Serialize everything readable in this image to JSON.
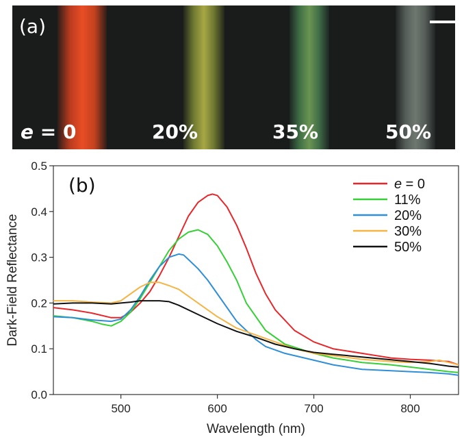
{
  "photo": {
    "panel_label": "(a)",
    "strain_var": "e",
    "strain_first_suffix": " = 0",
    "strain_labels": [
      "20%",
      "35%",
      "50%"
    ]
  },
  "chart_data": {
    "type": "line",
    "panel_label": "(b)",
    "xlabel": "Wavelength (nm)",
    "ylabel": "Dark-Field Reflectance",
    "xlim": [
      430,
      850
    ],
    "ylim": [
      0,
      0.5
    ],
    "xticks": [
      500,
      600,
      700,
      800
    ],
    "yticks": [
      0.0,
      0.1,
      0.2,
      0.3,
      0.4,
      0.5
    ],
    "ytick_labels": [
      "0.0",
      "0.1",
      "0.2",
      "0.3",
      "0.4",
      "0.5"
    ],
    "grid": false,
    "legend_position": "top-right",
    "series": [
      {
        "name_var": "e",
        "name": " = 0",
        "color": "#e8262a",
        "x": [
          430,
          450,
          470,
          490,
          500,
          510,
          520,
          530,
          540,
          550,
          560,
          570,
          580,
          590,
          595,
          600,
          610,
          620,
          630,
          640,
          650,
          660,
          680,
          700,
          720,
          750,
          780,
          800,
          820,
          840,
          850
        ],
        "y": [
          0.19,
          0.185,
          0.178,
          0.168,
          0.168,
          0.18,
          0.2,
          0.225,
          0.26,
          0.3,
          0.345,
          0.39,
          0.42,
          0.435,
          0.438,
          0.435,
          0.41,
          0.37,
          0.32,
          0.265,
          0.22,
          0.185,
          0.14,
          0.115,
          0.1,
          0.09,
          0.08,
          0.077,
          0.075,
          0.072,
          0.065
        ]
      },
      {
        "name": "11%",
        "color": "#36d036",
        "x": [
          430,
          450,
          470,
          480,
          490,
          500,
          510,
          520,
          530,
          540,
          550,
          560,
          570,
          580,
          590,
          600,
          610,
          620,
          630,
          650,
          670,
          700,
          720,
          750,
          780,
          800,
          820,
          840,
          850
        ],
        "y": [
          0.172,
          0.168,
          0.16,
          0.154,
          0.15,
          0.16,
          0.18,
          0.21,
          0.245,
          0.28,
          0.315,
          0.34,
          0.355,
          0.36,
          0.35,
          0.325,
          0.29,
          0.25,
          0.2,
          0.14,
          0.11,
          0.09,
          0.08,
          0.07,
          0.065,
          0.06,
          0.055,
          0.05,
          0.048
        ]
      },
      {
        "name": "20%",
        "color": "#2e8ed8",
        "x": [
          430,
          450,
          470,
          490,
          500,
          510,
          520,
          530,
          540,
          550,
          560,
          565,
          570,
          580,
          590,
          600,
          620,
          640,
          650,
          670,
          700,
          720,
          750,
          780,
          800,
          820,
          840,
          850
        ],
        "y": [
          0.17,
          0.168,
          0.163,
          0.16,
          0.165,
          0.185,
          0.215,
          0.25,
          0.28,
          0.3,
          0.307,
          0.305,
          0.295,
          0.275,
          0.25,
          0.22,
          0.16,
          0.12,
          0.105,
          0.09,
          0.075,
          0.065,
          0.055,
          0.052,
          0.05,
          0.048,
          0.045,
          0.042
        ]
      },
      {
        "name": "30%",
        "color": "#f5b545",
        "x": [
          430,
          450,
          470,
          490,
          500,
          510,
          520,
          530,
          540,
          550,
          560,
          580,
          600,
          620,
          640,
          660,
          680,
          700,
          720,
          750,
          780,
          800,
          820,
          830,
          840,
          850
        ],
        "y": [
          0.205,
          0.205,
          0.202,
          0.2,
          0.205,
          0.22,
          0.235,
          0.245,
          0.245,
          0.238,
          0.23,
          0.2,
          0.17,
          0.145,
          0.13,
          0.115,
          0.1,
          0.09,
          0.085,
          0.077,
          0.072,
          0.07,
          0.072,
          0.075,
          0.07,
          0.065
        ]
      },
      {
        "name": "50%",
        "color": "#111111",
        "x": [
          430,
          450,
          470,
          490,
          500,
          510,
          520,
          530,
          540,
          550,
          560,
          580,
          600,
          620,
          640,
          660,
          680,
          700,
          720,
          750,
          780,
          800,
          820,
          840,
          850
        ],
        "y": [
          0.198,
          0.2,
          0.2,
          0.198,
          0.2,
          0.202,
          0.205,
          0.205,
          0.205,
          0.203,
          0.195,
          0.175,
          0.155,
          0.138,
          0.125,
          0.11,
          0.1,
          0.092,
          0.088,
          0.082,
          0.076,
          0.072,
          0.068,
          0.062,
          0.06
        ]
      }
    ]
  }
}
